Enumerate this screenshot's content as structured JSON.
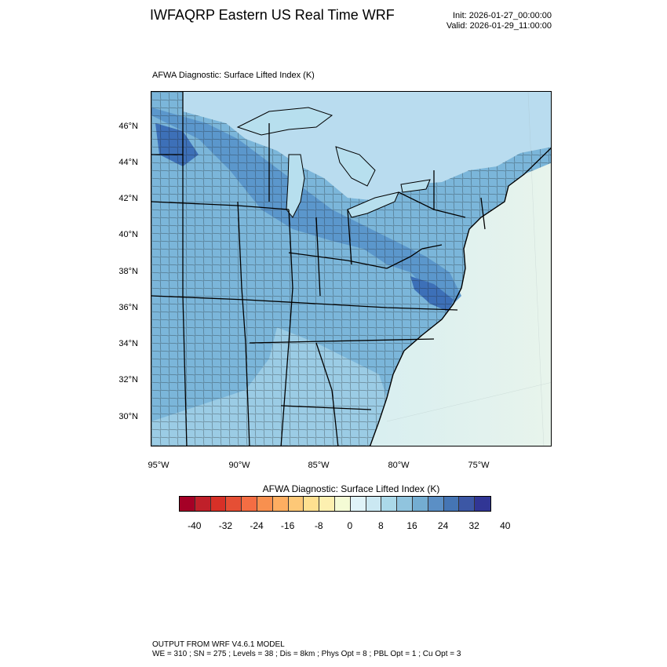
{
  "header": {
    "title": "IWFAQRP Eastern US Real Time WRF",
    "init": "Init: 2026-01-27_00:00:00",
    "valid": "Valid: 2026-01-29_11:00:00"
  },
  "map": {
    "subtitle": "AFWA Diagnostic: Surface Lifted Index   (K)",
    "lat_labels": [
      "46°N",
      "44°N",
      "42°N",
      "40°N",
      "38°N",
      "36°N",
      "34°N",
      "32°N",
      "30°N"
    ],
    "lon_labels": [
      "95°W",
      "90°W",
      "85°W",
      "80°W",
      "75°W"
    ],
    "colors": {
      "ocean_light": "#e8f4ec",
      "ocean_mid": "#d1ecf2",
      "ocean_coast": "#b7dfee",
      "land_mid": "#7bb6da",
      "land_dark": "#5b97cc",
      "land_darkest": "#3d70b8",
      "boundary": "#000000"
    }
  },
  "colorbar": {
    "title": "AFWA Diagnostic: Surface Lifted Index  (K)",
    "colors": [
      "#a50026",
      "#c0202a",
      "#d73027",
      "#e54f35",
      "#f46d43",
      "#f8904f",
      "#fdae61",
      "#fdc877",
      "#fee090",
      "#fdf0b0",
      "#f4fbd5",
      "#e0f3f8",
      "#cbe8f2",
      "#abd9e9",
      "#90c4de",
      "#74add1",
      "#5b8fc5",
      "#4575b4",
      "#3c57a5",
      "#313695"
    ],
    "tick_labels": [
      "-40",
      "-32",
      "-24",
      "-16",
      "-8",
      "0",
      "8",
      "16",
      "24",
      "32",
      "40"
    ]
  },
  "footer": {
    "line1": "OUTPUT FROM WRF V4.6.1 MODEL",
    "line2": "WE = 310 ; SN = 275 ; Levels = 38 ; Dis = 8km ; Phys Opt = 8 ; PBL Opt = 1 ; Cu Opt = 3"
  }
}
